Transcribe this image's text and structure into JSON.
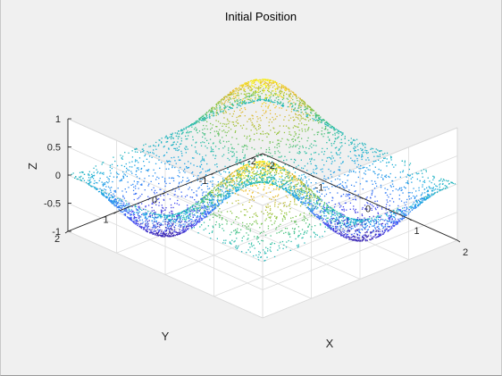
{
  "figure": {
    "background_color": "#f0f0f0",
    "axes_background_color": "#ffffff"
  },
  "chart_data": {
    "type": "scatter",
    "variant": "3d-scatter-surface",
    "title": "Initial Position",
    "xlabel": "X",
    "ylabel": "Y",
    "zlabel": "Z",
    "xlim": [
      -2,
      2
    ],
    "ylim": [
      -2,
      2
    ],
    "zlim": [
      -1,
      1
    ],
    "x_ticks": [
      "-2",
      "-1",
      "0",
      "1",
      "2"
    ],
    "y_ticks": [
      "-2",
      "-1",
      "0",
      "1",
      "2"
    ],
    "z_ticks": [
      "-1",
      "-0.5",
      "0",
      "0.5",
      "1"
    ],
    "x_tick_values": [
      -2,
      -1,
      0,
      1,
      2
    ],
    "y_tick_values": [
      -2,
      -1,
      0,
      1,
      2
    ],
    "z_tick_values": [
      -1,
      -0.5,
      0,
      0.5,
      1
    ],
    "grid": true,
    "legend": "none",
    "surface": {
      "description_formula": "z = sin(pi*x/2) * sin(pi*y/2) approx (sampled point cloud)",
      "x_range": [
        -2,
        2
      ],
      "y_range": [
        -2,
        2
      ],
      "amplitude": 1
    },
    "colormap": "parula",
    "colormap_stops": [
      "#3e26a8",
      "#4748f3",
      "#2e87f6",
      "#1cacdc",
      "#2ec09e",
      "#8dc53f",
      "#eab933",
      "#f9fa14"
    ],
    "marker": "point"
  }
}
